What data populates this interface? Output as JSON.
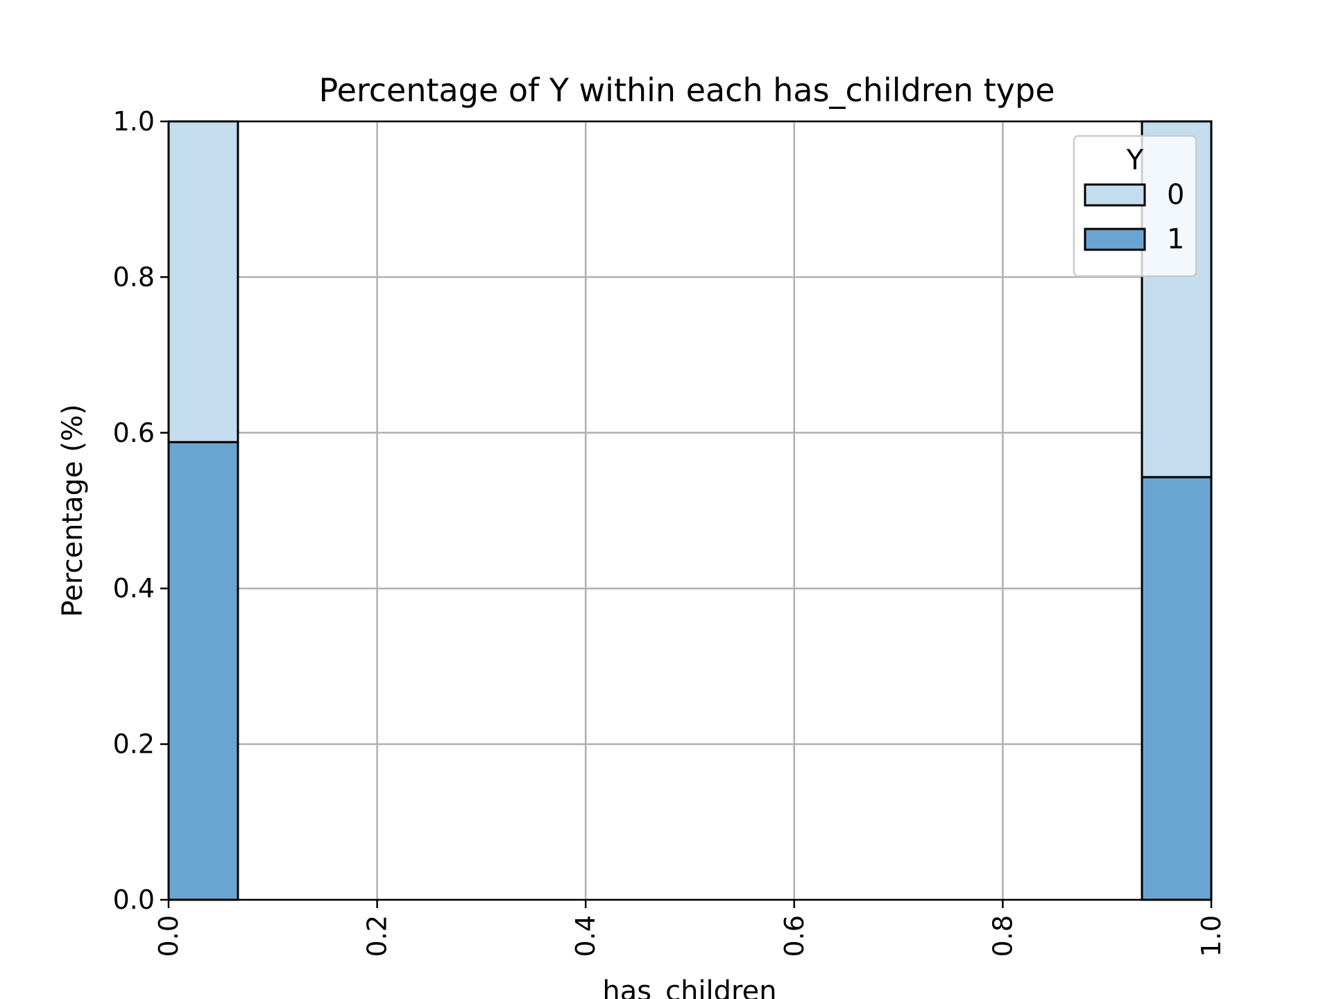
{
  "chart_data": {
    "type": "bar",
    "stacked": true,
    "title": "Percentage of Y within each has_children type",
    "xlabel": "has_children",
    "ylabel": "Percentage (%)",
    "xlim": [
      0.0,
      1.0
    ],
    "ylim": [
      0.0,
      1.0
    ],
    "x_ticks": [
      "0.0",
      "0.2",
      "0.4",
      "0.6",
      "0.8",
      "1.0"
    ],
    "y_ticks": [
      "0.0",
      "0.2",
      "0.4",
      "0.6",
      "0.8",
      "1.0"
    ],
    "grid": true,
    "legend": {
      "title": "Y",
      "placement": "top-right"
    },
    "categories": [
      0,
      1
    ],
    "series": [
      {
        "name": "1",
        "color": "#6aa5d1",
        "values": [
          0.588,
          0.543
        ]
      },
      {
        "name": "0",
        "color": "#c3dcee",
        "values": [
          0.412,
          0.457
        ]
      }
    ]
  }
}
